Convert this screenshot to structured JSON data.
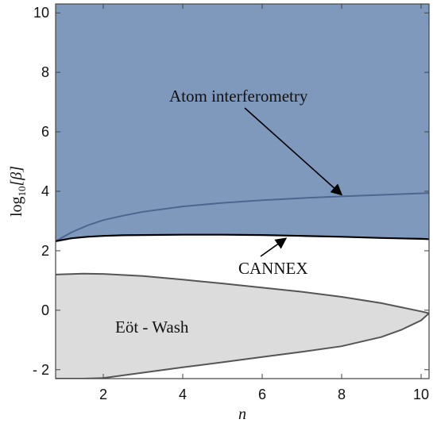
{
  "chart_data": {
    "type": "area",
    "xlabel": "n",
    "ylabel_base": "log",
    "ylabel_sub": "10",
    "ylabel_arg": "[β]",
    "xlim": [
      0.8,
      10.2
    ],
    "ylim": [
      -2.3,
      10.3
    ],
    "x_ticks": [
      2,
      4,
      6,
      8,
      10
    ],
    "y_ticks": [
      10,
      8,
      6,
      4,
      2,
      0,
      -2
    ],
    "y_tick_labels": [
      "10",
      "8",
      "6",
      "4",
      "2",
      "0",
      "- 2"
    ],
    "colors": {
      "excluded_region": "#7f99bd",
      "eotwash_region": "#dcdcdc",
      "cannex_line": "#000000",
      "atom_line": "#4d6690",
      "eotwash_line": "#555555",
      "frame": "#444444"
    },
    "series": [
      {
        "name": "CANNEX",
        "x": [
          0.8,
          1.2,
          1.6,
          2.0,
          2.5,
          3.0,
          4.0,
          5.0,
          6.0,
          7.0,
          8.0,
          9.0,
          10.0,
          10.2
        ],
        "y": [
          2.32,
          2.42,
          2.47,
          2.5,
          2.52,
          2.53,
          2.54,
          2.54,
          2.53,
          2.5,
          2.47,
          2.43,
          2.4,
          2.39
        ]
      },
      {
        "name": "Atom interferometry",
        "x": [
          0.8,
          1.2,
          1.6,
          2.0,
          2.5,
          3.0,
          4.0,
          5.0,
          6.0,
          7.0,
          8.0,
          9.0,
          10.0,
          10.2
        ],
        "y": [
          2.32,
          2.62,
          2.85,
          3.03,
          3.18,
          3.31,
          3.49,
          3.61,
          3.7,
          3.77,
          3.83,
          3.88,
          3.93,
          3.94
        ]
      },
      {
        "name": "Eöt - Wash",
        "x": [
          0.8,
          1.5,
          2.0,
          3.0,
          4.0,
          5.0,
          6.0,
          7.0,
          8.0,
          9.0,
          9.5,
          10.0,
          10.2
        ],
        "y_upper": [
          1.2,
          1.23,
          1.22,
          1.15,
          1.03,
          0.9,
          0.76,
          0.62,
          0.45,
          0.24,
          0.1,
          -0.04,
          -0.1
        ],
        "y_lower": [
          -2.3,
          -2.3,
          -2.28,
          -2.1,
          -1.92,
          -1.75,
          -1.57,
          -1.4,
          -1.21,
          -0.9,
          -0.66,
          -0.34,
          -0.1
        ]
      }
    ],
    "annotations": [
      {
        "text": "Atom interferometry",
        "arrow_to": [
          8.0,
          3.83
        ]
      },
      {
        "text": "CANNEX",
        "arrow_to": [
          6.6,
          2.5
        ]
      },
      {
        "text": "Eöt - Wash"
      }
    ]
  }
}
